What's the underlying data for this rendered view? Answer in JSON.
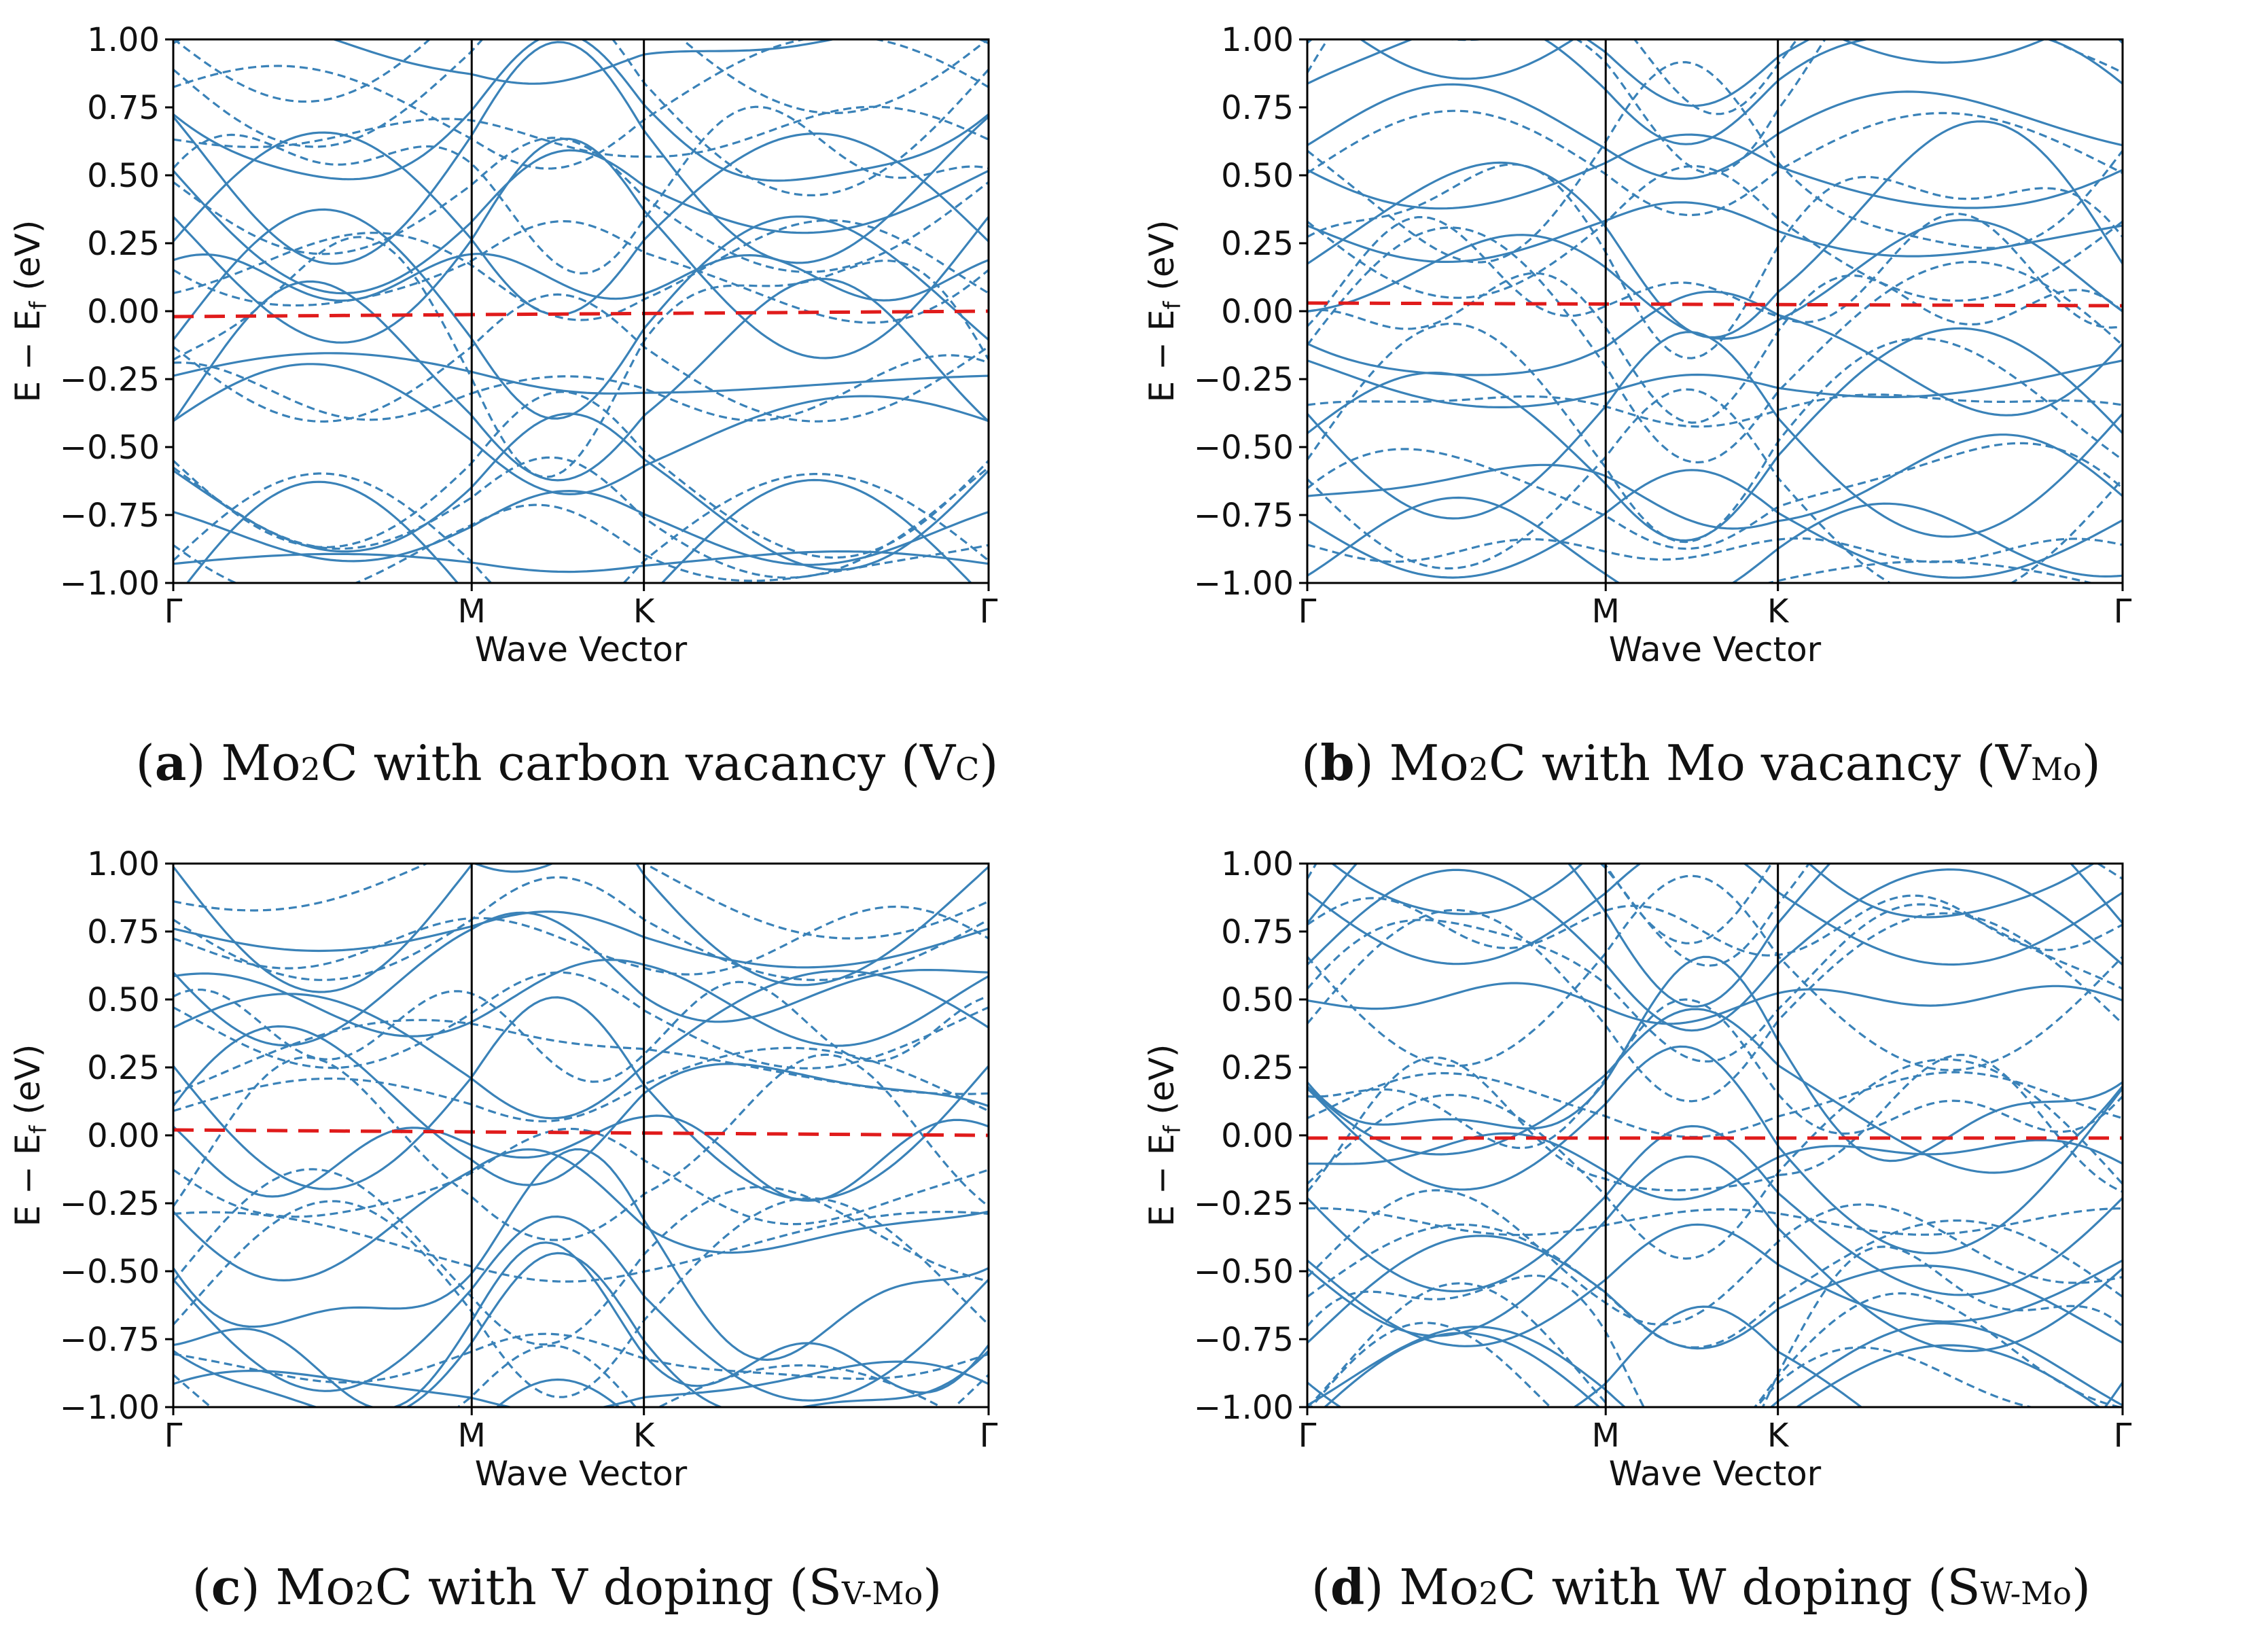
{
  "colors": {
    "band": "#3a82b8",
    "fermi": "#e01b1b",
    "axis": "#000000"
  },
  "chart_data": [
    {
      "id": "a",
      "type": "line",
      "caption": {
        "letter": "a",
        "formula_prefix": "Mo",
        "formula_sub": "2",
        "formula_suffix": "C",
        "text": " with carbon vacancy (",
        "label_main": "V",
        "label_sub": "C",
        "close": ")"
      },
      "xlabel": "Wave Vector",
      "ylabel": "E − E",
      "ylabel_sub": "f",
      "ylabel_unit": " (eV)",
      "ylim": [
        -1.0,
        1.0
      ],
      "yticks": [
        "1.00",
        "0.75",
        "0.50",
        "0.25",
        "0.00",
        "−0.25",
        "−0.50",
        "−0.75",
        "−1.00"
      ],
      "kpoints": [
        {
          "label": "Γ",
          "x": 0.0
        },
        {
          "label": "M",
          "x": 1.0
        },
        {
          "label": "K",
          "x": 1.577
        },
        {
          "label": "Γ",
          "x": 2.732
        }
      ],
      "fermi_line": [
        -0.02,
        0.0
      ],
      "band_count": 16
    },
    {
      "id": "b",
      "type": "line",
      "caption": {
        "letter": "b",
        "formula_prefix": "Mo",
        "formula_sub": "2",
        "formula_suffix": "C",
        "text": " with Mo vacancy (",
        "label_main": "V",
        "label_sub": "Mo",
        "close": ")"
      },
      "xlabel": "Wave Vector",
      "ylabel": "E − E",
      "ylabel_sub": "f",
      "ylabel_unit": " (eV)",
      "ylim": [
        -1.0,
        1.0
      ],
      "yticks": [
        "1.00",
        "0.75",
        "0.50",
        "0.25",
        "0.00",
        "−0.25",
        "−0.50",
        "−0.75",
        "−1.00"
      ],
      "kpoints": [
        {
          "label": "Γ",
          "x": 0.0
        },
        {
          "label": "M",
          "x": 1.0
        },
        {
          "label": "K",
          "x": 1.577
        },
        {
          "label": "Γ",
          "x": 2.732
        }
      ],
      "fermi_line": [
        0.03,
        0.02
      ],
      "band_count": 16
    },
    {
      "id": "c",
      "type": "line",
      "caption": {
        "letter": "c",
        "formula_prefix": "Mo",
        "formula_sub": "2",
        "formula_suffix": "C",
        "text": " with V doping (",
        "label_main": "S",
        "label_sub": "V-Mo",
        "close": ")"
      },
      "xlabel": "Wave Vector",
      "ylabel": "E − E",
      "ylabel_sub": "f",
      "ylabel_unit": " (eV)",
      "ylim": [
        -1.0,
        1.0
      ],
      "yticks": [
        "1.00",
        "0.75",
        "0.50",
        "0.25",
        "0.00",
        "−0.25",
        "−0.50",
        "−0.75",
        "−1.00"
      ],
      "kpoints": [
        {
          "label": "Γ",
          "x": 0.0
        },
        {
          "label": "M",
          "x": 1.0
        },
        {
          "label": "K",
          "x": 1.577
        },
        {
          "label": "Γ",
          "x": 2.732
        }
      ],
      "fermi_line": [
        0.02,
        0.0
      ],
      "band_count": 16
    },
    {
      "id": "d",
      "type": "line",
      "caption": {
        "letter": "d",
        "formula_prefix": "Mo",
        "formula_sub": "2",
        "formula_suffix": "C",
        "text": " with W doping (",
        "label_main": "S",
        "label_sub": "W-Mo",
        "close": ")"
      },
      "xlabel": "Wave Vector",
      "ylabel": "E − E",
      "ylabel_sub": "f",
      "ylabel_unit": " (eV)",
      "ylim": [
        -1.0,
        1.0
      ],
      "yticks": [
        "1.00",
        "0.75",
        "0.50",
        "0.25",
        "0.00",
        "−0.25",
        "−0.50",
        "−0.75",
        "−1.00"
      ],
      "kpoints": [
        {
          "label": "Γ",
          "x": 0.0
        },
        {
          "label": "M",
          "x": 1.0
        },
        {
          "label": "K",
          "x": 1.577
        },
        {
          "label": "Γ",
          "x": 2.732
        }
      ],
      "fermi_line": [
        -0.01,
        -0.01
      ],
      "band_count": 16
    }
  ]
}
